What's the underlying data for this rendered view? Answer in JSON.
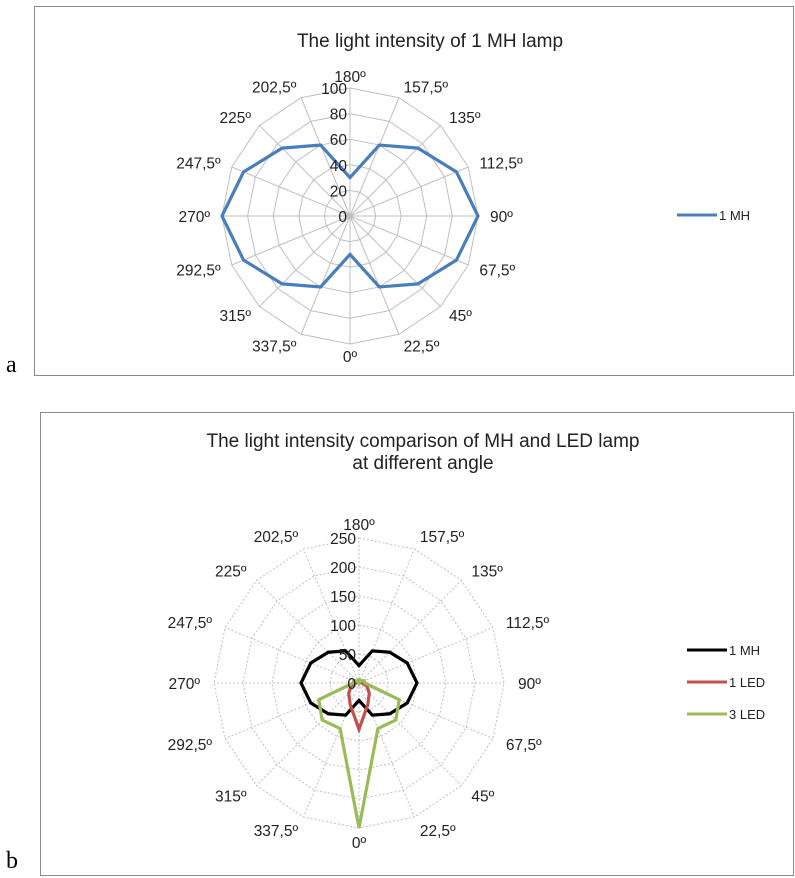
{
  "panels": [
    {
      "label": "a"
    },
    {
      "label": "b"
    }
  ],
  "chart_data": [
    {
      "type": "radar",
      "title": [
        "The light intensity of 1 MH lamp"
      ],
      "angle_labels": [
        "180º",
        "157,5º",
        "135º",
        "112,5º",
        "90º",
        "67,5º",
        "45º",
        "22,5º",
        "0º",
        "337,5º",
        "315º",
        "292,5º",
        "270º",
        "247,5º",
        "225º",
        "202,5º"
      ],
      "radial_ticks": [
        "0",
        "20",
        "40",
        "60",
        "80",
        "100"
      ],
      "rlim": [
        0,
        100
      ],
      "grid": true,
      "legend_position": "right",
      "series": [
        {
          "name": "1 MH",
          "color": "#4a7ebb",
          "values": [
            30,
            60,
            75,
            90,
            100,
            90,
            75,
            60,
            30,
            60,
            75,
            90,
            100,
            90,
            75,
            60
          ]
        }
      ]
    },
    {
      "type": "radar",
      "title": [
        "The light intensity comparison of MH and LED lamp",
        "at different angle"
      ],
      "angle_labels": [
        "180º",
        "157,5º",
        "135º",
        "112,5º",
        "90º",
        "67,5º",
        "45º",
        "22,5º",
        "0º",
        "337,5º",
        "315º",
        "292,5º",
        "270º",
        "247,5º",
        "225º",
        "202,5º"
      ],
      "radial_ticks": [
        "0",
        "50",
        "100",
        "150",
        "200",
        "250"
      ],
      "rlim": [
        0,
        250
      ],
      "grid": true,
      "legend_position": "right",
      "series": [
        {
          "name": "1 MH",
          "color": "#000000",
          "values": [
            30,
            60,
            75,
            90,
            100,
            90,
            75,
            60,
            30,
            60,
            75,
            90,
            100,
            90,
            75,
            60
          ]
        },
        {
          "name": "1 LED",
          "color": "#c0504d",
          "values": [
            0,
            2,
            3,
            5,
            5,
            15,
            25,
            40,
            80,
            40,
            25,
            15,
            5,
            5,
            3,
            2
          ]
        },
        {
          "name": "3 LED",
          "color": "#9bbb59",
          "values": [
            0,
            5,
            5,
            10,
            10,
            75,
            90,
            85,
            250,
            85,
            90,
            75,
            10,
            10,
            5,
            5
          ]
        }
      ]
    }
  ]
}
